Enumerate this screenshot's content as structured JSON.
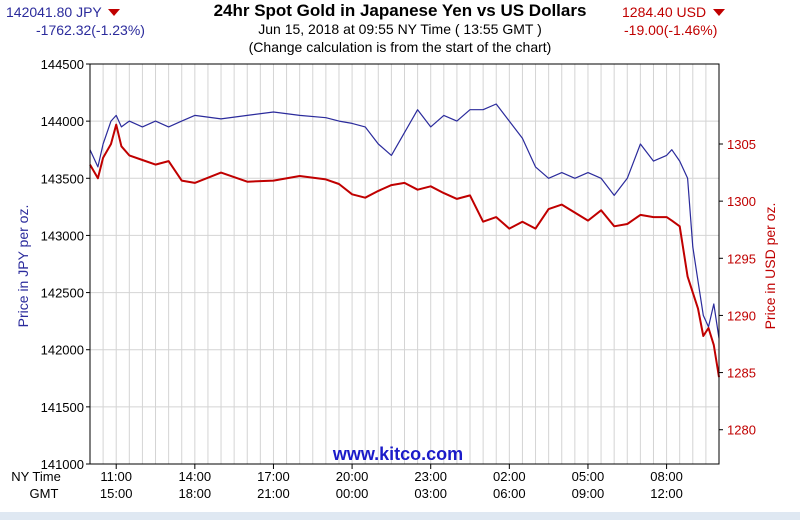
{
  "colors": {
    "jpy": "#2b2b9c",
    "usd": "#c00000",
    "grid": "#d4d4d4",
    "watermark": "#1b1bc9"
  },
  "header": {
    "title": "24hr Spot Gold in Japanese Yen vs US Dollars",
    "subtitle": "Jun 15, 2018 at 09:55 NY Time ( 13:55 GMT )",
    "note": "(Change calculation is from the start of the chart)",
    "jpy_price": "142041.80 JPY",
    "jpy_change": "-1762.32(-1.23%)",
    "usd_price": "1284.40 USD",
    "usd_change": "-19.00(-1.46%)"
  },
  "watermark": "www.kitco.com",
  "chart_data": {
    "type": "line",
    "xlabel_rows": [
      "NY Time",
      "GMT"
    ],
    "ylabel": "Price in JPY per oz.",
    "y2label": "Price in USD per oz.",
    "ylim": [
      141000,
      144500
    ],
    "y2lim": [
      1277,
      1312
    ],
    "yticks": [
      141000,
      141500,
      142000,
      142500,
      143000,
      143500,
      144000,
      144500
    ],
    "y2ticks": [
      1280,
      1285,
      1290,
      1295,
      1300,
      1305
    ],
    "xlim": [
      0,
      24
    ],
    "xticks": [
      {
        "x": 1,
        "ny": "11:00",
        "gmt": "15:00"
      },
      {
        "x": 4,
        "ny": "14:00",
        "gmt": "18:00"
      },
      {
        "x": 7,
        "ny": "17:00",
        "gmt": "21:00"
      },
      {
        "x": 10,
        "ny": "20:00",
        "gmt": "00:00"
      },
      {
        "x": 13,
        "ny": "23:00",
        "gmt": "03:00"
      },
      {
        "x": 16,
        "ny": "02:00",
        "gmt": "06:00"
      },
      {
        "x": 19,
        "ny": "05:00",
        "gmt": "09:00"
      },
      {
        "x": 22,
        "ny": "08:00",
        "gmt": "12:00"
      }
    ],
    "grid": true,
    "series": [
      {
        "axis": "left",
        "color": "#2b2b9c",
        "x": [
          0,
          0.3,
          0.5,
          0.8,
          1.0,
          1.2,
          1.5,
          2.0,
          2.5,
          3.0,
          3.5,
          4.0,
          5.0,
          6.0,
          7.0,
          8.0,
          9.0,
          9.5,
          10.0,
          10.5,
          11.0,
          11.5,
          12.0,
          12.5,
          13.0,
          13.5,
          14.0,
          14.5,
          15.0,
          15.5,
          16.0,
          16.5,
          17.0,
          17.5,
          18.0,
          18.5,
          19.0,
          19.5,
          20.0,
          20.5,
          21.0,
          21.5,
          22.0,
          22.2,
          22.5,
          22.8,
          23.0,
          23.2,
          23.4,
          23.6,
          23.8,
          24.0
        ],
        "y": [
          143750,
          143600,
          143800,
          144000,
          144050,
          143950,
          144000,
          143950,
          144000,
          143950,
          144000,
          144050,
          144020,
          144050,
          144080,
          144050,
          144030,
          144000,
          143980,
          143950,
          143800,
          143700,
          143900,
          144100,
          143950,
          144050,
          144000,
          144100,
          144100,
          144150,
          144000,
          143850,
          143600,
          143500,
          143550,
          143500,
          143550,
          143500,
          143350,
          143500,
          143800,
          143650,
          143700,
          143750,
          143650,
          143500,
          142900,
          142600,
          142300,
          142200,
          142400,
          142100
        ]
      },
      {
        "axis": "right",
        "color": "#c00000",
        "x": [
          0,
          0.3,
          0.5,
          0.8,
          1.0,
          1.2,
          1.5,
          2.0,
          2.5,
          3.0,
          3.5,
          4.0,
          5.0,
          6.0,
          7.0,
          8.0,
          9.0,
          9.5,
          10.0,
          10.5,
          11.0,
          11.5,
          12.0,
          12.5,
          13.0,
          13.5,
          14.0,
          14.5,
          15.0,
          15.5,
          16.0,
          16.5,
          17.0,
          17.5,
          18.0,
          18.5,
          19.0,
          19.5,
          20.0,
          20.5,
          21.0,
          21.5,
          22.0,
          22.2,
          22.5,
          22.8,
          23.0,
          23.2,
          23.4,
          23.6,
          23.8,
          24.0
        ],
        "y": [
          1303.2,
          1302.0,
          1303.8,
          1305.0,
          1306.7,
          1304.8,
          1304.0,
          1303.6,
          1303.2,
          1303.5,
          1301.8,
          1301.6,
          1302.5,
          1301.7,
          1301.8,
          1302.2,
          1301.9,
          1301.5,
          1300.6,
          1300.3,
          1300.9,
          1301.4,
          1301.6,
          1301.0,
          1301.3,
          1300.7,
          1300.2,
          1300.5,
          1298.2,
          1298.6,
          1297.6,
          1298.2,
          1297.6,
          1299.3,
          1299.7,
          1299.0,
          1298.3,
          1299.2,
          1297.8,
          1298.0,
          1298.8,
          1298.6,
          1298.6,
          1298.3,
          1297.8,
          1293.4,
          1292.0,
          1290.6,
          1288.2,
          1288.9,
          1287.4,
          1284.6
        ]
      }
    ]
  }
}
